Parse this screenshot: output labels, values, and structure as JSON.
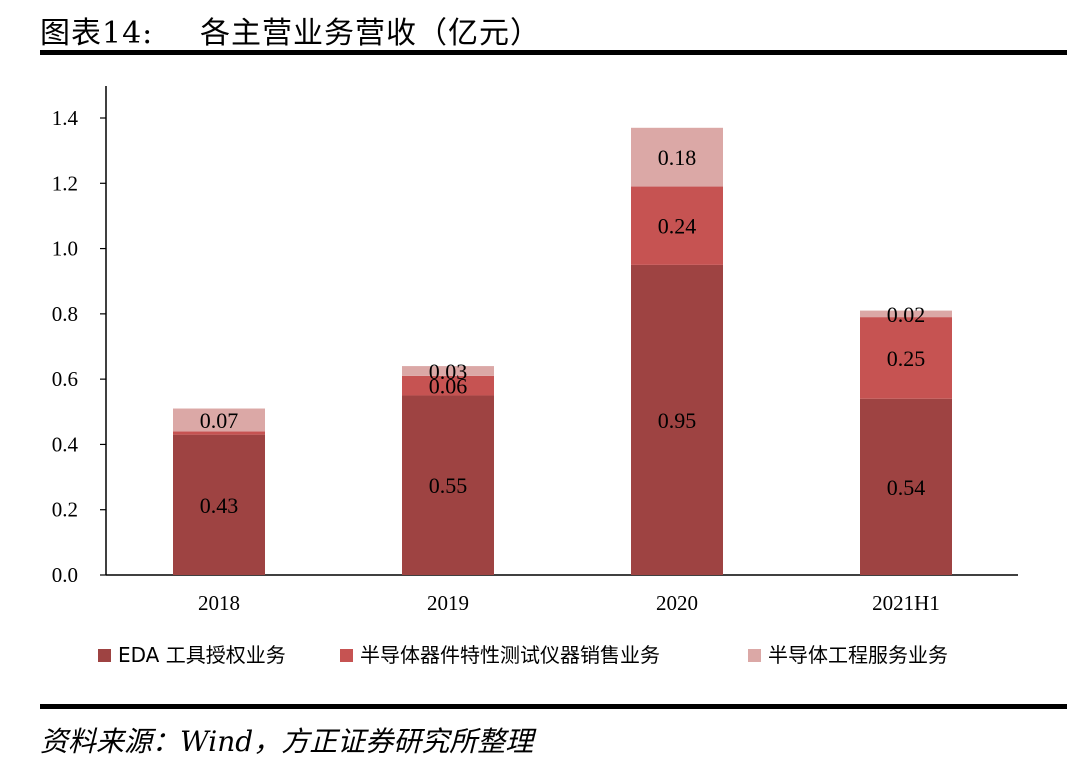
{
  "header": {
    "label": "图表14:",
    "title": "各主营业务营收（亿元）"
  },
  "source": "资料来源：Wind，方正证券研究所整理",
  "chart_data": {
    "type": "bar",
    "stacked": true,
    "categories": [
      "2018",
      "2019",
      "2020",
      "2021H1"
    ],
    "series": [
      {
        "name": "EDA 工具授权业务",
        "values": [
          0.43,
          0.55,
          0.95,
          0.54
        ],
        "color": "#9e4342"
      },
      {
        "name": "半导体器件特性测试仪器销售业务",
        "values": [
          0.01,
          0.06,
          0.24,
          0.25
        ],
        "color": "#c65352"
      },
      {
        "name": "半导体工程服务业务",
        "values": [
          0.07,
          0.03,
          0.18,
          0.02
        ],
        "color": "#dba8a6"
      }
    ],
    "data_labels": [
      [
        "0.43",
        "0.55",
        "0.95",
        "0.54"
      ],
      [
        "",
        "0.06",
        "0.24",
        "0.25"
      ],
      [
        "0.07",
        "0.03",
        "0.18",
        "0.02"
      ]
    ],
    "ylim": [
      0,
      1.4
    ],
    "yticks": [
      "0.0",
      "0.2",
      "0.4",
      "0.6",
      "0.8",
      "1.0",
      "1.2",
      "1.4"
    ],
    "xlabel": "",
    "ylabel": "",
    "grid": false,
    "legend_position": "bottom"
  }
}
